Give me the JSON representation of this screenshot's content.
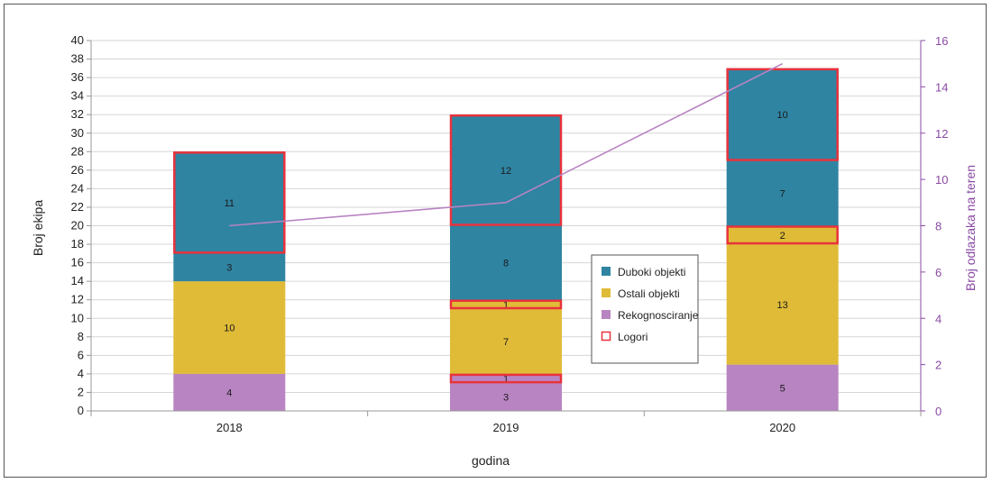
{
  "chart_data": {
    "type": "bar",
    "stacked": true,
    "categories": [
      "2018",
      "2019",
      "2020"
    ],
    "series": [
      {
        "name": "Rekognosciranje",
        "color": "#b884c2",
        "values": [
          4,
          3,
          5
        ]
      },
      {
        "name": "Logori",
        "color": "#e0bb37",
        "values": [
          0,
          1,
          0
        ]
      },
      {
        "name": "Ostali objekti",
        "color": "#e0bb37",
        "values": [
          10,
          7,
          13
        ]
      },
      {
        "name": "Logori",
        "color": "#e0bb37",
        "values": [
          0,
          1,
          2
        ]
      },
      {
        "name": "Duboki objekti",
        "color": "#2f84a2",
        "values": [
          3,
          8,
          7
        ]
      },
      {
        "name": "Logori",
        "color": "#2f84a2",
        "values": [
          11,
          12,
          10
        ]
      }
    ],
    "segments": [
      [
        {
          "series": "Rekognosciranje",
          "value": 4,
          "color": "#b884c2",
          "label": "4",
          "logori": false
        },
        {
          "series": "Ostali objekti",
          "value": 10,
          "color": "#e0bb37",
          "label": "10",
          "logori": false
        },
        {
          "series": "Duboki objekti",
          "value": 3,
          "color": "#2f84a2",
          "label": "3",
          "logori": false
        },
        {
          "series": "Duboki objekti",
          "value": 11,
          "color": "#2f84a2",
          "label": "11",
          "logori": true
        }
      ],
      [
        {
          "series": "Rekognosciranje",
          "value": 3,
          "color": "#b884c2",
          "label": "3",
          "logori": false
        },
        {
          "series": "Rekognosciranje",
          "value": 1,
          "color": "#b884c2",
          "label": "1",
          "logori": true
        },
        {
          "series": "Ostali objekti",
          "value": 7,
          "color": "#e0bb37",
          "label": "7",
          "logori": false
        },
        {
          "series": "Ostali objekti",
          "value": 1,
          "color": "#e0bb37",
          "label": "1",
          "logori": true
        },
        {
          "series": "Duboki objekti",
          "value": 8,
          "color": "#2f84a2",
          "label": "8",
          "logori": false
        },
        {
          "series": "Duboki objekti",
          "value": 12,
          "color": "#2f84a2",
          "label": "12",
          "logori": true
        }
      ],
      [
        {
          "series": "Rekognosciranje",
          "value": 5,
          "color": "#b884c2",
          "label": "5",
          "logori": false
        },
        {
          "series": "Ostali objekti",
          "value": 13,
          "color": "#e0bb37",
          "label": "13",
          "logori": false
        },
        {
          "series": "Ostali objekti",
          "value": 2,
          "color": "#e0bb37",
          "label": "2",
          "logori": true
        },
        {
          "series": "Duboki objekti",
          "value": 7,
          "color": "#2f84a2",
          "label": "7",
          "logori": false
        },
        {
          "series": "Duboki objekti",
          "value": 10,
          "color": "#2f84a2",
          "label": "10",
          "logori": true
        }
      ]
    ],
    "line_series": {
      "name": "Broj odlazaka na teren",
      "color": "#b884c2",
      "axis": "y2",
      "values": [
        8,
        9,
        15
      ]
    },
    "xlabel": "godina",
    "ylabel": "Broj ekipa",
    "y2label": "Broj odlazaka na teren",
    "ylim": [
      0,
      40
    ],
    "y_ticks": [
      "0",
      "2",
      "4",
      "6",
      "8",
      "10",
      "12",
      "14",
      "16",
      "18",
      "20",
      "22",
      "24",
      "26",
      "28",
      "30",
      "32",
      "34",
      "36",
      "38",
      "40"
    ],
    "y2lim": [
      0,
      16
    ],
    "y2_ticks": [
      "0",
      "2",
      "4",
      "6",
      "8",
      "10",
      "12",
      "14",
      "16"
    ],
    "grid": true,
    "legend_position": "center-right",
    "legend": [
      {
        "name": "Duboki objekti",
        "color": "#2f84a2",
        "swatch": "filled"
      },
      {
        "name": "Ostali objekti",
        "color": "#e0bb37",
        "swatch": "filled"
      },
      {
        "name": "Rekognosciranje",
        "color": "#b884c2",
        "swatch": "filled"
      },
      {
        "name": "Logori",
        "color": "#e8323c",
        "swatch": "outline"
      }
    ],
    "logori_outline_color": "#e8323c",
    "axis_y2_color": "#8a4aa3"
  }
}
